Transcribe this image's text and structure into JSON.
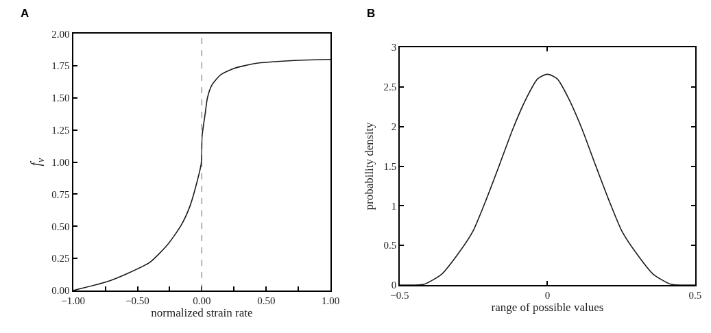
{
  "chart_data": [
    {
      "type": "line",
      "title": "A",
      "xlabel": "normalized strain rate",
      "ylabel": "f$_{v}$",
      "marker": "none",
      "line_style": "solid",
      "x": [
        -1,
        -0.744,
        -0.573,
        -0.402,
        -0.265,
        -0.162,
        -0.094,
        -0.043,
        -0.005,
        0.002,
        0.026,
        0.043,
        0.077,
        0.145,
        0.248,
        0.419,
        0.675,
        1.0
      ],
      "series": [
        {
          "color": "#1a1a1a",
          "values": [
            0,
            0.066,
            0.135,
            0.221,
            0.359,
            0.506,
            0.653,
            0.826,
            0.99,
            1.205,
            1.38,
            1.5,
            1.6,
            1.68,
            1.73,
            1.77,
            1.79,
            1.8
          ]
        }
      ],
      "xlim": [
        -1,
        1
      ],
      "xticks": [
        {
          "value": -1,
          "label": "−1.00"
        },
        {
          "value": -0.75,
          "label": null
        },
        {
          "value": -0.5,
          "label": "−0.50"
        },
        {
          "value": -0.25,
          "label": null
        },
        {
          "value": 0,
          "label": "0.00"
        },
        {
          "value": 0.25,
          "label": null
        },
        {
          "value": 0.5,
          "label": "0.50"
        },
        {
          "value": 0.75,
          "label": null
        },
        {
          "value": 1,
          "label": "1.00"
        }
      ],
      "ylim": [
        0,
        2
      ],
      "yticks": [
        {
          "value": 0,
          "label": "0.00"
        },
        {
          "value": 0.25,
          "label": "0.25"
        },
        {
          "value": 0.5,
          "label": "0.50"
        },
        {
          "value": 0.75,
          "label": "0.75"
        },
        {
          "value": 1,
          "label": "1.00"
        },
        {
          "value": 1.25,
          "label": "1.25"
        },
        {
          "value": 1.5,
          "label": "1.50"
        },
        {
          "value": 1.75,
          "label": "1.75"
        },
        {
          "value": 2,
          "label": "2.00"
        }
      ],
      "ref_lines": [
        {
          "axis": "x",
          "value": 0,
          "color": "#777777",
          "line_style": "dashed"
        }
      ]
    },
    {
      "type": "line",
      "title": "B",
      "xlabel": "range of possible values",
      "ylabel": "probability density",
      "marker": "none",
      "line_style": "solid",
      "x": [
        -0.5,
        -0.417,
        -0.357,
        -0.305,
        -0.252,
        -0.207,
        -0.162,
        -0.117,
        -0.071,
        -0.034,
        -0.017,
        0,
        0.017,
        0.034,
        0.071,
        0.117,
        0.162,
        0.207,
        0.252,
        0.305,
        0.357,
        0.417,
        0.5
      ],
      "series": [
        {
          "color": "#1a1a1a",
          "values": [
            0,
            0.01,
            0.14,
            0.38,
            0.68,
            1.08,
            1.52,
            1.97,
            2.36,
            2.6,
            2.64,
            2.66,
            2.64,
            2.6,
            2.36,
            1.97,
            1.52,
            1.08,
            0.68,
            0.38,
            0.14,
            0.01,
            0
          ]
        }
      ],
      "xlim": [
        -0.5,
        0.5
      ],
      "xticks": [
        {
          "value": -0.5,
          "label": "−0.5"
        },
        0,
        0.5
      ],
      "ylim": [
        0,
        3
      ],
      "yticks": [
        0,
        0.5,
        1,
        1.5,
        2,
        2.5,
        3
      ]
    }
  ]
}
